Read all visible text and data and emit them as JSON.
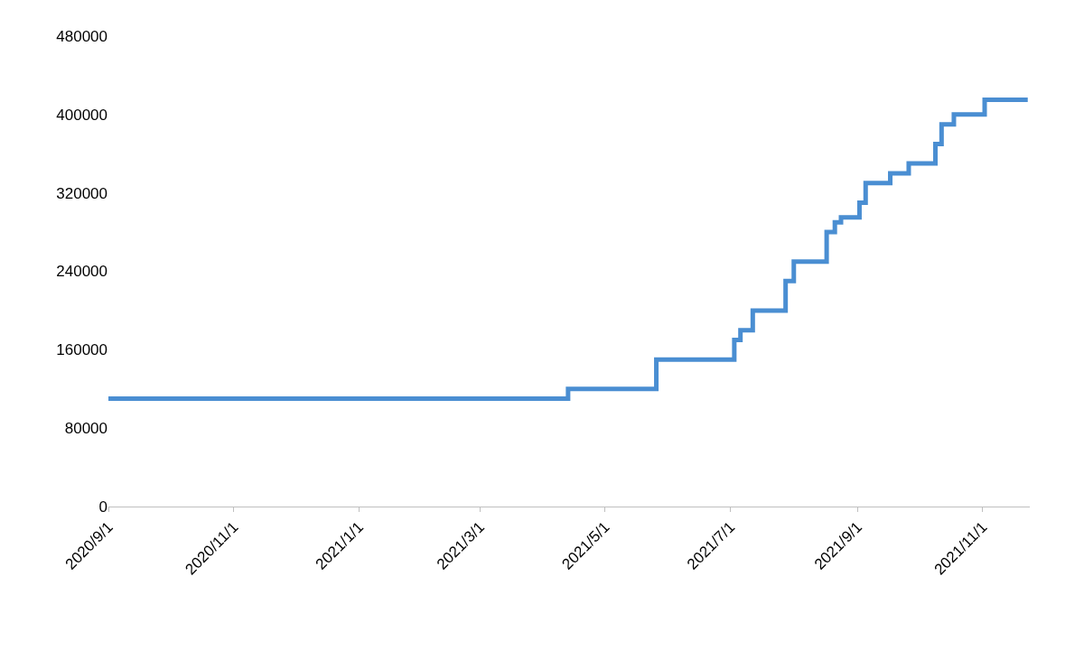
{
  "chart_data": {
    "type": "step",
    "x": [
      "2020-09-01",
      "2021-04-13",
      "2021-05-26",
      "2021-07-03",
      "2021-07-06",
      "2021-07-12",
      "2021-07-28",
      "2021-08-01",
      "2021-08-17",
      "2021-08-21",
      "2021-08-24",
      "2021-09-02",
      "2021-09-05",
      "2021-09-17",
      "2021-09-26",
      "2021-10-09",
      "2021-10-12",
      "2021-10-18",
      "2021-11-02",
      "2021-11-23"
    ],
    "series": [
      {
        "color": "#4a8ed2",
        "values": [
          110000,
          120000,
          150000,
          170000,
          180000,
          200000,
          230000,
          250000,
          280000,
          290000,
          295000,
          310000,
          330000,
          340000,
          350000,
          370000,
          390000,
          400000,
          415000,
          415000
        ]
      }
    ],
    "xlim": [
      "2020-09-01",
      "2021-11-24"
    ],
    "xticks": [
      {
        "value": "2020-09-01",
        "label": "2020/9/1"
      },
      {
        "value": "2020-11-01",
        "label": "2020/11/1"
      },
      {
        "value": "2021-01-01",
        "label": "2021/1/1"
      },
      {
        "value": "2021-03-01",
        "label": "2021/3/1"
      },
      {
        "value": "2021-05-01",
        "label": "2021/5/1"
      },
      {
        "value": "2021-07-01",
        "label": "2021/7/1"
      },
      {
        "value": "2021-09-01",
        "label": "2021/9/1"
      },
      {
        "value": "2021-11-01",
        "label": "2021/11/1"
      }
    ],
    "ylim": [
      0,
      480000
    ],
    "yticks": [
      0,
      80000,
      160000,
      240000,
      320000,
      400000,
      480000
    ]
  }
}
